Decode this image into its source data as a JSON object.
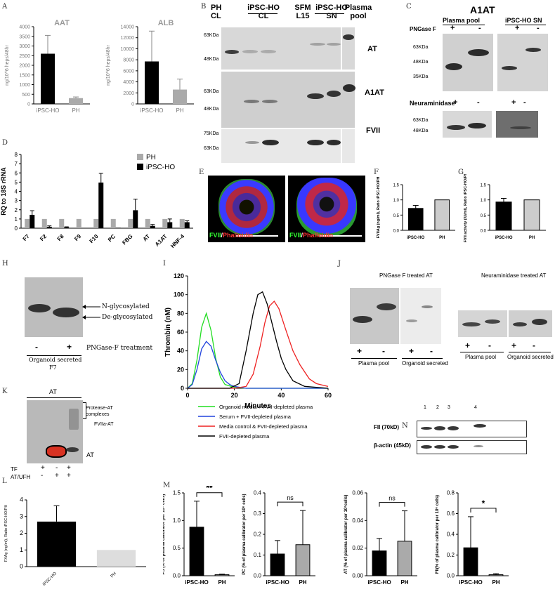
{
  "panel_letters": {
    "A": "A",
    "B": "B",
    "C": "C",
    "D": "D",
    "E": "E",
    "F": "F",
    "G": "G",
    "H": "H",
    "I": "I",
    "J": "J",
    "K": "K",
    "L": "L",
    "M": "M",
    "N": "N"
  },
  "panelA": {
    "aat": {
      "title": "AAT",
      "ylabel": "ng/10^6 heps/48hr",
      "ticks": [
        "0",
        "500",
        "1000",
        "1500",
        "2000",
        "2500",
        "3000",
        "3500",
        "4000"
      ],
      "categories": [
        "iPSC-HO",
        "PH"
      ]
    },
    "alb": {
      "title": "ALB",
      "ylabel": "ng/10^6 heps/48hr",
      "ticks": [
        "0",
        "2000",
        "4000",
        "6000",
        "8000",
        "10000",
        "12000",
        "14000"
      ],
      "categories": [
        "iPSC-HO",
        "PH"
      ]
    }
  },
  "panelB": {
    "lanes": [
      {
        "l1": "PH",
        "l2": "CL"
      },
      {
        "l1": "iPSC-HO",
        "l2": "CL"
      },
      {
        "l1": "SFM",
        "l2": "L15"
      },
      {
        "l1": "iPSC-HO",
        "l2": "SN"
      },
      {
        "l1": "Plasma",
        "l2": "pool"
      }
    ],
    "blots": [
      {
        "name": "AT",
        "m1": "63KDa",
        "m2": "48KDa"
      },
      {
        "name": "A1AT",
        "m1": "63KDa",
        "m2": "48KDa"
      },
      {
        "name": "FVII",
        "m1": "75KDa",
        "m2": "63KDa"
      }
    ]
  },
  "panelC": {
    "title": "A1AT",
    "group1": "Plasma pool",
    "group2": "iPSC-HO SN",
    "pngase": "PNGase F",
    "neur": "Neuraminidase",
    "plus": "+",
    "minus": "-",
    "m63": "63KDa",
    "m48": "48KDa",
    "m35": "35KDa"
  },
  "panelD": {
    "ylabel": "RQ to 18S rRNA",
    "ticks": [
      "0",
      "1",
      "2",
      "3",
      "4",
      "5",
      "6",
      "7",
      "8"
    ],
    "legend": [
      "PH",
      "iPSC-HO"
    ],
    "categories": [
      "F7",
      "F2",
      "F8",
      "F9",
      "F10",
      "PC",
      "FBG",
      "AT",
      "A1AT",
      "HNF-4"
    ]
  },
  "panelE": {
    "fvii": "FVII",
    "slash": "/",
    "phalloidin": "Phalloidin"
  },
  "panelF": {
    "ylabel": "FVIIAg (ng/ml), Ratio iPSC-HO/PH",
    "ticks": [
      "0.0",
      "0.5",
      "1.0",
      "1.5"
    ],
    "categories": [
      "iPSC-HO",
      "PH"
    ]
  },
  "panelG": {
    "ylabel": "FVII activity (IU/ml), Ratio iPSC-HO/PH",
    "ticks": [
      "0.0",
      "0.5",
      "1.0",
      "1.5"
    ],
    "categories": [
      "iPSC-HO",
      "PH"
    ]
  },
  "panelH": {
    "nglyc": "N-glycosylated",
    "deglyc": "De-glycosylated",
    "minus": "-",
    "plus": "+",
    "treatment": "PNGase-F treatment",
    "caption1": "Organoid secreted",
    "caption2": "F7"
  },
  "panelI": {
    "ylabel": "Thrombin (nM)",
    "xlabel": "Minutes",
    "yticks": [
      "0",
      "20",
      "40",
      "60",
      "80",
      "100",
      "120"
    ],
    "xticks": [
      "0",
      "20",
      "40",
      "60"
    ],
    "legend": [
      "Organoid media + FVII-depleted plasma",
      "Serum + FVII-depleted plasma",
      "Media control & FVII-depleted plasma",
      "FVII-depleted plasma"
    ]
  },
  "panelJ": {
    "title1": "PNGase F treated AT",
    "title2": "Neuraminidase treated AT",
    "plasma": "Plasma pool",
    "organoid": "Organoid secreted",
    "plus": "+",
    "minus": "-"
  },
  "panelK": {
    "title": "AT",
    "complex1": "Protease-AT",
    "complex2": "complexes",
    "fviia": "FVIIa-AT",
    "at": "AT",
    "tf": "TF",
    "atufh": "AT/UFH",
    "plus": "+",
    "minus": "-"
  },
  "panelL": {
    "ylabel": "FXAg (ng/ml), Ratio iPSC-HO/PH",
    "ticks": [
      "0",
      "1",
      "2",
      "3",
      "4"
    ],
    "categories": [
      "iPSC-HO",
      "PH"
    ]
  },
  "panelM": {
    "ps": {
      "ylabel": "PS (% of plasma calibrator per 10⁶ cells)",
      "ticks": [
        "0.0",
        "0.5",
        "1.0",
        "1.5"
      ],
      "sig": "**",
      "categories": [
        "iPSC-HO",
        "PH"
      ]
    },
    "pc": {
      "ylabel": "PC (% of plasma calibrator per 10⁶ cells)",
      "ticks": [
        "0.0",
        "0.1",
        "0.2",
        "0.3",
        "0.4"
      ],
      "sig": "ns",
      "categories": [
        "iPSC-HO",
        "PH"
      ]
    },
    "at": {
      "ylabel": "AT (% of plasma calibrator per 10⁶cells)",
      "ticks": [
        "0.00",
        "0.02",
        "0.04",
        "0.06"
      ],
      "sig": "ns",
      "categories": [
        "iPSC-HO",
        "PH"
      ]
    },
    "fii": {
      "ylabel": "FII(% of plasma calibrator per 10⁶ cells)",
      "ticks": [
        "0.0",
        "0.2",
        "0.4",
        "0.6",
        "0.8"
      ],
      "sig": "*",
      "categories": [
        "iPSC-HO",
        "PH"
      ]
    }
  },
  "panelN": {
    "lanes": [
      "1",
      "2",
      "3",
      "4"
    ],
    "fii": "FII (70kD)",
    "actin": "β-actin (45kD)"
  },
  "chart_data": [
    {
      "id": "A-AAT",
      "type": "bar",
      "title": "AAT",
      "ylabel": "ng/10^6 heps/48hr",
      "categories": [
        "iPSC-HO",
        "PH"
      ],
      "values": [
        2600,
        300
      ],
      "errors": [
        950,
        60
      ],
      "ylim": [
        0,
        4000
      ]
    },
    {
      "id": "A-ALB",
      "type": "bar",
      "title": "ALB",
      "ylabel": "ng/10^6 heps/48hr",
      "categories": [
        "iPSC-HO",
        "PH"
      ],
      "values": [
        7700,
        2600
      ],
      "errors": [
        5500,
        1900
      ],
      "ylim": [
        0,
        14000
      ]
    },
    {
      "id": "D",
      "type": "bar",
      "ylabel": "RQ to 18S rRNA",
      "categories": [
        "F7",
        "F2",
        "F8",
        "F9",
        "F10",
        "PC",
        "FBG",
        "AT",
        "A1AT",
        "HNF-4"
      ],
      "series": [
        {
          "name": "PH",
          "values": [
            1,
            1,
            1,
            1,
            1,
            1,
            1,
            1,
            1,
            1
          ]
        },
        {
          "name": "iPSC-HO",
          "values": [
            1.45,
            0.15,
            0.1,
            0.02,
            4.95,
            0.05,
            1.95,
            0.25,
            0.65,
            0.65
          ]
        }
      ],
      "errors": [
        [
          0,
          0,
          0,
          0,
          0,
          0,
          0,
          0,
          0,
          0
        ],
        [
          0.45,
          0.1,
          0.05,
          0,
          1.0,
          0,
          1.2,
          0.15,
          0.35,
          0.15
        ]
      ],
      "ylim": [
        0,
        8
      ]
    },
    {
      "id": "F",
      "type": "bar",
      "ylabel": "FVIIAg (ng/ml), Ratio iPSC-HO/PH",
      "categories": [
        "iPSC-HO",
        "PH"
      ],
      "values": [
        0.72,
        1.0
      ],
      "errors": [
        0.1,
        0
      ],
      "ylim": [
        0,
        1.5
      ]
    },
    {
      "id": "G",
      "type": "bar",
      "ylabel": "FVII activity (IU/ml), Ratio iPSC-HO/PH",
      "categories": [
        "iPSC-HO",
        "PH"
      ],
      "values": [
        0.93,
        1.0
      ],
      "errors": [
        0.12,
        0
      ],
      "ylim": [
        0,
        1.5
      ]
    },
    {
      "id": "I",
      "type": "line",
      "xlabel": "Minutes",
      "ylabel": "Thrombin (nM)",
      "xlim": [
        0,
        60
      ],
      "ylim": [
        0,
        120
      ],
      "series": [
        {
          "name": "Organoid media + FVII-depleted plasma",
          "color": "#22dd22",
          "x": [
            0,
            2,
            4,
            6,
            8,
            10,
            12,
            14,
            16,
            20,
            25,
            30,
            40,
            60
          ],
          "y": [
            0,
            5,
            30,
            65,
            80,
            62,
            32,
            12,
            4,
            1,
            0,
            0,
            0,
            0
          ]
        },
        {
          "name": "Serum + FVII-depleted plasma",
          "color": "#2244dd",
          "x": [
            0,
            2,
            4,
            6,
            8,
            10,
            12,
            14,
            16,
            18,
            20,
            25,
            30,
            40,
            60
          ],
          "y": [
            0,
            4,
            20,
            42,
            50,
            45,
            30,
            17,
            8,
            4,
            2,
            0,
            0,
            0,
            0
          ]
        },
        {
          "name": "Media control & FVII-depleted plasma",
          "color": "#ee2222",
          "x": [
            0,
            20,
            25,
            28,
            31,
            33,
            35,
            37,
            39,
            42,
            45,
            48,
            52,
            55,
            60
          ],
          "y": [
            0,
            0,
            2,
            15,
            45,
            70,
            88,
            93,
            85,
            62,
            40,
            25,
            10,
            5,
            2
          ]
        },
        {
          "name": "FVII-depleted plasma",
          "color": "#000000",
          "x": [
            0,
            18,
            22,
            25,
            28,
            30,
            32,
            34,
            36,
            38,
            40,
            42,
            45,
            50,
            60
          ],
          "y": [
            0,
            0,
            5,
            40,
            80,
            100,
            103,
            90,
            70,
            50,
            32,
            20,
            8,
            2,
            0
          ]
        }
      ]
    },
    {
      "id": "L",
      "type": "bar",
      "ylabel": "FXAg (ng/ml), Ratio iPSC-HO/PH",
      "categories": [
        "iPSC-HO",
        "PH"
      ],
      "values": [
        2.7,
        1.0
      ],
      "errors": [
        0.95,
        0
      ],
      "ylim": [
        0,
        4
      ]
    },
    {
      "id": "M-PS",
      "type": "bar",
      "ylabel": "PS (% of plasma calibrator per 10⁶ cells)",
      "categories": [
        "iPSC-HO",
        "PH"
      ],
      "values": [
        0.88,
        0.02
      ],
      "errors": [
        0.47,
        0.01
      ],
      "ylim": [
        0,
        1.5
      ]
    },
    {
      "id": "M-PC",
      "type": "bar",
      "ylabel": "PC (% of plasma calibrator per 10⁶ cells)",
      "categories": [
        "iPSC-HO",
        "PH"
      ],
      "values": [
        0.105,
        0.15
      ],
      "errors": [
        0.065,
        0.165
      ],
      "ylim": [
        0,
        0.4
      ]
    },
    {
      "id": "M-AT",
      "type": "bar",
      "ylabel": "AT (% of plasma calibrator per 10⁶cells)",
      "categories": [
        "iPSC-HO",
        "PH"
      ],
      "values": [
        0.018,
        0.025
      ],
      "errors": [
        0.009,
        0.022
      ],
      "ylim": [
        0,
        0.06
      ]
    },
    {
      "id": "M-FII",
      "type": "bar",
      "ylabel": "FII(% of plasma calibrator per 10⁶ cells)",
      "categories": [
        "iPSC-HO",
        "PH"
      ],
      "values": [
        0.27,
        0.01
      ],
      "errors": [
        0.3,
        0.01
      ],
      "ylim": [
        0,
        0.8
      ]
    }
  ]
}
